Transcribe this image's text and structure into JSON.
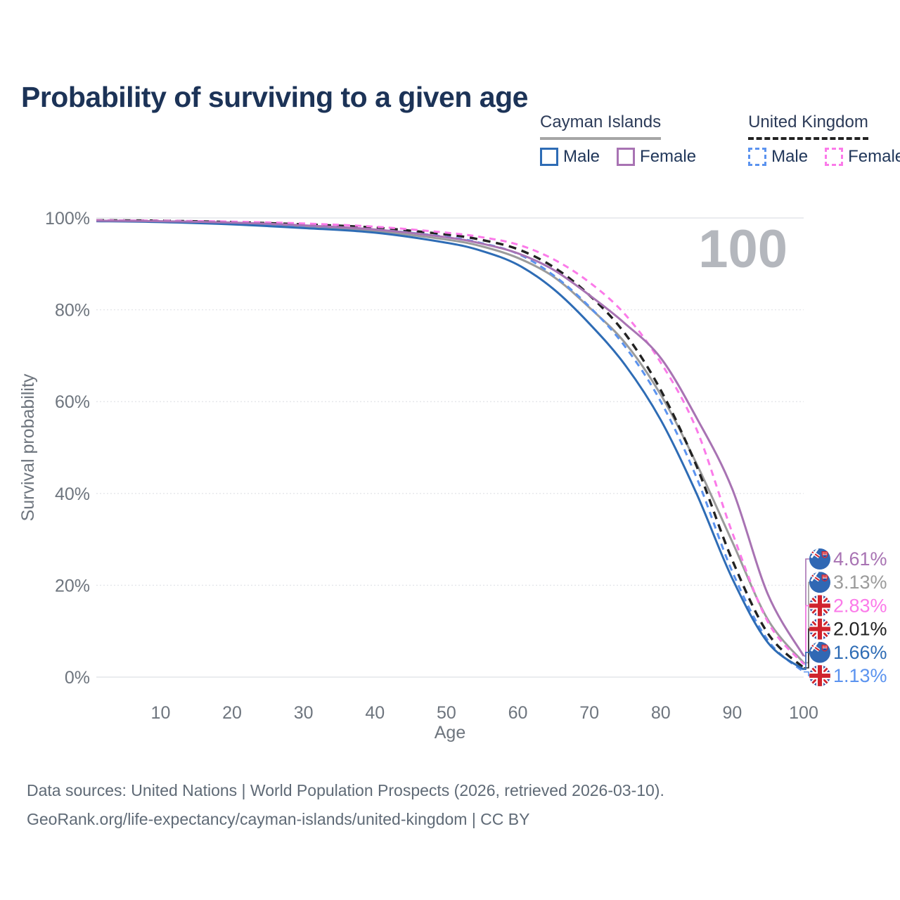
{
  "page": {
    "title": "Probability of surviving to a given age"
  },
  "legend": {
    "groups": [
      {
        "label": "Cayman Islands",
        "line_style": "solid",
        "items": [
          {
            "label": "Male",
            "series": "ci-male"
          },
          {
            "label": "Female",
            "series": "ci-female"
          }
        ]
      },
      {
        "label": "United Kingdom",
        "line_style": "dashed",
        "items": [
          {
            "label": "Male",
            "series": "uk-male"
          },
          {
            "label": "Female",
            "series": "uk-female"
          }
        ]
      }
    ]
  },
  "chart_data": {
    "type": "line",
    "title": "Probability of surviving to a given age",
    "xlabel": "Age",
    "ylabel": "Survival probability",
    "xlim": [
      1,
      100
    ],
    "ylim": [
      0,
      100
    ],
    "x_ticks": [
      10,
      20,
      30,
      40,
      50,
      60,
      70,
      80,
      90,
      100
    ],
    "y_ticks": [
      0,
      20,
      40,
      60,
      80,
      100
    ],
    "y_tick_suffix": "%",
    "grid": "horizontal",
    "legend_position": "top-right",
    "inside_label": "100",
    "ages": [
      1,
      10,
      20,
      30,
      40,
      50,
      55,
      60,
      65,
      70,
      75,
      80,
      85,
      90,
      95,
      100
    ],
    "series": [
      {
        "id": "ci-all",
        "name": "Cayman Islands",
        "country": "Cayman Islands",
        "sex": "all",
        "color": "#9b9b9b",
        "dash": null,
        "flag": "ky",
        "end_label": "3.13%",
        "values": [
          99.4,
          99.2,
          98.8,
          98.1,
          97.1,
          95.3,
          93.8,
          91.3,
          87.2,
          80.5,
          72.8,
          61.5,
          46.5,
          29.5,
          12.5,
          3.13
        ]
      },
      {
        "id": "uk-all",
        "name": "United Kingdom",
        "country": "United Kingdom",
        "sex": "all",
        "color": "#222222",
        "dash": [
          11,
          8
        ],
        "flag": "uk",
        "end_label": "2.01%",
        "values": [
          99.5,
          99.4,
          99.1,
          98.6,
          97.9,
          96.4,
          95.2,
          93.2,
          89.3,
          83.2,
          74.8,
          62.5,
          46.0,
          25.5,
          9.5,
          2.01
        ]
      },
      {
        "id": "uk-male",
        "name": "United Kingdom Male",
        "country": "United Kingdom",
        "sex": "male",
        "color": "#5b93ef",
        "dash": [
          9,
          7
        ],
        "flag": "uk",
        "end_label": "1.13%",
        "values": [
          99.4,
          99.2,
          98.9,
          98.3,
          97.5,
          95.9,
          94.5,
          92.2,
          87.5,
          80.7,
          72.0,
          60.0,
          43.5,
          23.0,
          8.0,
          1.13
        ]
      },
      {
        "id": "ci-male",
        "name": "Cayman Islands Male",
        "country": "Cayman Islands",
        "sex": "male",
        "color": "#2e6cb5",
        "dash": null,
        "flag": "ky",
        "end_label": "1.66%",
        "values": [
          99.3,
          99.1,
          98.6,
          97.8,
          96.8,
          94.6,
          92.8,
          89.8,
          84.5,
          77.0,
          68.0,
          56.0,
          40.0,
          21.5,
          7.5,
          1.66
        ]
      },
      {
        "id": "uk-female",
        "name": "United Kingdom Female",
        "country": "United Kingdom",
        "sex": "female",
        "color": "#fb7ae9",
        "dash": [
          9,
          7
        ],
        "flag": "uk",
        "end_label": "2.83%",
        "values": [
          99.5,
          99.4,
          99.2,
          98.8,
          98.1,
          96.8,
          95.8,
          94.2,
          91.0,
          86.0,
          79.0,
          68.5,
          54.0,
          31.5,
          12.0,
          2.83
        ]
      },
      {
        "id": "ci-female",
        "name": "Cayman Islands Female",
        "country": "Cayman Islands",
        "sex": "female",
        "color": "#a873b3",
        "dash": null,
        "flag": "ky",
        "end_label": "4.61%",
        "values": [
          99.4,
          99.3,
          99.0,
          98.4,
          97.5,
          95.8,
          94.4,
          92.3,
          88.7,
          83.2,
          77.0,
          69.5,
          56.5,
          41.0,
          18.0,
          4.61
        ]
      }
    ]
  },
  "footer": {
    "line1": "Data sources: United Nations | World Population Prospects (2026, retrieved 2026-03-10).",
    "line2": "GeoRank.org/life-expectancy/cayman-islands/united-kingdom | CC BY"
  }
}
